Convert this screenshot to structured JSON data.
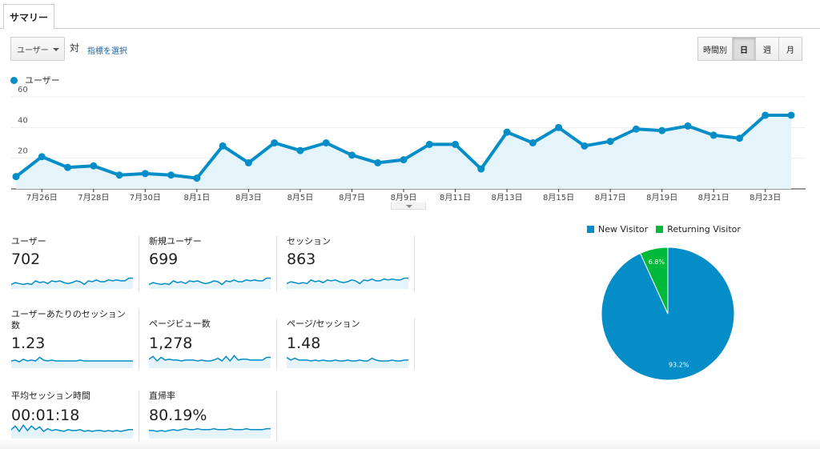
{
  "tab": {
    "label": "サマリー"
  },
  "controls": {
    "metric_select_value": "ユーザー",
    "vs_label": "対",
    "choose_metric_link": "指標を選択",
    "granularity": [
      {
        "label": "時間別",
        "active": false
      },
      {
        "label": "日",
        "active": true
      },
      {
        "label": "週",
        "active": false
      },
      {
        "label": "月",
        "active": false
      }
    ]
  },
  "colors": {
    "series": "#058dc7",
    "fill": "#e5f3fa",
    "new_visitor": "#058dc7",
    "returning_visitor": "#00b93a"
  },
  "chart_data": [
    {
      "type": "area",
      "series": [
        {
          "name": "ユーザー",
          "values": [
            8,
            21,
            14,
            15,
            9,
            10,
            9,
            7,
            28,
            17,
            30,
            25,
            30,
            22,
            17,
            19,
            29,
            29,
            13,
            37,
            30,
            40,
            28,
            31,
            39,
            38,
            41,
            35,
            33,
            48,
            48
          ]
        }
      ],
      "x": [
        "7月25日",
        "7月26日",
        "7月27日",
        "7月28日",
        "7月29日",
        "7月30日",
        "7月31日",
        "8月1日",
        "8月2日",
        "8月3日",
        "8月4日",
        "8月5日",
        "8月6日",
        "8月7日",
        "8月8日",
        "8月9日",
        "8月10日",
        "8月11日",
        "8月12日",
        "8月13日",
        "8月14日",
        "8月15日",
        "8月16日",
        "8月17日",
        "8月18日",
        "8月19日",
        "8月20日",
        "8月21日",
        "8月22日",
        "8月23日",
        "8月24日"
      ],
      "tick_labels": [
        "7月26日",
        "7月28日",
        "7月30日",
        "8月1日",
        "8月3日",
        "8月5日",
        "8月7日",
        "8月9日",
        "8月11日",
        "8月13日",
        "8月15日",
        "8月17日",
        "8月19日",
        "8月21日",
        "8月23日"
      ],
      "yticks": [
        "60",
        "40",
        "20"
      ],
      "ylim": [
        0,
        60
      ],
      "grid": true,
      "legend": "top-left"
    },
    {
      "type": "pie",
      "legend": "top",
      "slices": [
        {
          "name": "New Visitor",
          "value": 93.2,
          "label": "93.2%"
        },
        {
          "name": "Returning Visitor",
          "value": 6.8,
          "label": "6.8%"
        }
      ]
    }
  ],
  "scorecards": [
    {
      "label": "ユーザー",
      "value": "702",
      "spark": [
        5,
        7,
        6,
        5,
        6,
        5,
        9,
        7,
        8,
        6,
        9,
        8,
        9,
        7,
        6,
        7,
        9,
        8,
        5,
        9,
        8,
        10,
        8,
        8,
        10,
        9,
        10,
        9,
        9,
        12,
        12
      ]
    },
    {
      "label": "新規ユーザー",
      "value": "699",
      "spark": [
        5,
        7,
        6,
        5,
        6,
        5,
        9,
        7,
        8,
        6,
        9,
        8,
        9,
        7,
        6,
        7,
        9,
        8,
        5,
        9,
        8,
        10,
        8,
        8,
        10,
        9,
        10,
        9,
        9,
        12,
        12
      ]
    },
    {
      "label": "セッション",
      "value": "863",
      "spark": [
        6,
        8,
        7,
        6,
        7,
        6,
        10,
        8,
        9,
        7,
        10,
        9,
        10,
        8,
        7,
        8,
        10,
        9,
        6,
        10,
        9,
        11,
        9,
        9,
        11,
        10,
        11,
        10,
        10,
        12,
        12
      ]
    },
    {
      "label": "ユーザーあたりのセッション数",
      "value": "1.23",
      "spark": [
        8,
        9,
        7,
        10,
        8,
        9,
        8,
        12,
        9,
        8,
        9,
        8,
        8,
        8,
        8,
        8,
        8,
        9,
        8,
        8,
        8,
        8,
        8,
        8,
        8,
        8,
        8,
        8,
        8,
        8,
        8
      ]
    },
    {
      "label": "ページビュー数",
      "value": "1,278",
      "spark": [
        10,
        13,
        8,
        12,
        9,
        10,
        9,
        9,
        8,
        9,
        9,
        9,
        8,
        9,
        8,
        8,
        9,
        11,
        8,
        13,
        8,
        14,
        9,
        10,
        10,
        9,
        9,
        9,
        9,
        12,
        12
      ]
    },
    {
      "label": "ページ/セッション",
      "value": "1.48",
      "spark": [
        12,
        9,
        11,
        9,
        9,
        9,
        8,
        9,
        8,
        9,
        8,
        8,
        9,
        8,
        8,
        9,
        8,
        8,
        9,
        8,
        8,
        11,
        9,
        8,
        8,
        8,
        9,
        8,
        8,
        9,
        9
      ]
    },
    {
      "label": "平均セッション時間",
      "value": "00:01:18",
      "spark": [
        10,
        14,
        8,
        15,
        9,
        14,
        10,
        13,
        8,
        11,
        9,
        10,
        9,
        8,
        10,
        9,
        9,
        10,
        8,
        9,
        8,
        9,
        9,
        8,
        9,
        8,
        9,
        8,
        9,
        10,
        10
      ]
    },
    {
      "label": "直帰率",
      "value": "80.19%",
      "spark": [
        9,
        9,
        8,
        9,
        8,
        9,
        10,
        9,
        10,
        11,
        10,
        10,
        11,
        10,
        10,
        10,
        11,
        10,
        10,
        10,
        11,
        10,
        10,
        10,
        11,
        10,
        10,
        10,
        10,
        11,
        11
      ]
    }
  ]
}
